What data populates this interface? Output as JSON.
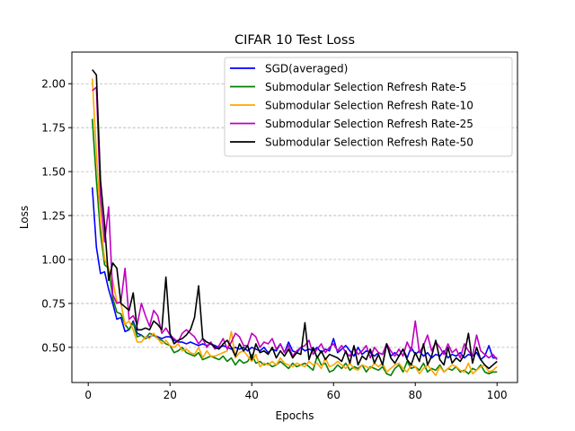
{
  "chart_data": {
    "type": "line",
    "title": "CIFAR 10 Test Loss",
    "xlabel": "Epochs",
    "ylabel": "Loss",
    "xlim": [
      -4,
      105
    ],
    "ylim": [
      0.3,
      2.18
    ],
    "xticks": [
      0,
      20,
      40,
      60,
      80,
      100
    ],
    "yticks": [
      0.5,
      0.75,
      1.0,
      1.25,
      1.5,
      1.75,
      2.0
    ],
    "xtick_labels": [
      "0",
      "20",
      "40",
      "60",
      "80",
      "100"
    ],
    "ytick_labels": [
      "0.50",
      "0.75",
      "1.00",
      "1.25",
      "1.50",
      "1.75",
      "2.00"
    ],
    "grid": "y-dashed",
    "legend_position": "top-right",
    "x_start": 1,
    "x_step": 1,
    "series": [
      {
        "name": "SGD(averaged)",
        "color": "#0000ff",
        "values": [
          1.41,
          1.07,
          0.92,
          0.93,
          0.83,
          0.75,
          0.66,
          0.67,
          0.59,
          0.6,
          0.65,
          0.58,
          0.57,
          0.55,
          0.56,
          0.57,
          0.56,
          0.55,
          0.56,
          0.56,
          0.54,
          0.53,
          0.53,
          0.52,
          0.53,
          0.52,
          0.51,
          0.52,
          0.51,
          0.52,
          0.51,
          0.5,
          0.51,
          0.5,
          0.49,
          0.5,
          0.49,
          0.5,
          0.48,
          0.5,
          0.49,
          0.48,
          0.5,
          0.47,
          0.49,
          0.48,
          0.52,
          0.47,
          0.53,
          0.48,
          0.47,
          0.5,
          0.48,
          0.49,
          0.48,
          0.5,
          0.47,
          0.49,
          0.48,
          0.55,
          0.47,
          0.49,
          0.51,
          0.48,
          0.45,
          0.5,
          0.46,
          0.48,
          0.47,
          0.45,
          0.47,
          0.46,
          0.52,
          0.45,
          0.47,
          0.45,
          0.49,
          0.44,
          0.5,
          0.46,
          0.48,
          0.45,
          0.47,
          0.44,
          0.46,
          0.45,
          0.48,
          0.44,
          0.46,
          0.45,
          0.47,
          0.44,
          0.46,
          0.45,
          0.47,
          0.43,
          0.45,
          0.51,
          0.44,
          0.44
        ]
      },
      {
        "name": "Submodular Selection Refresh Rate-5",
        "color": "#008000",
        "values": [
          1.8,
          1.45,
          1.15,
          0.97,
          0.95,
          0.78,
          0.7,
          0.69,
          0.63,
          0.6,
          0.64,
          0.56,
          0.57,
          0.55,
          0.58,
          0.57,
          0.55,
          0.54,
          0.52,
          0.51,
          0.47,
          0.48,
          0.5,
          0.47,
          0.46,
          0.45,
          0.47,
          0.43,
          0.44,
          0.45,
          0.44,
          0.43,
          0.45,
          0.42,
          0.44,
          0.4,
          0.43,
          0.41,
          0.42,
          0.46,
          0.41,
          0.42,
          0.4,
          0.41,
          0.39,
          0.4,
          0.42,
          0.4,
          0.38,
          0.41,
          0.39,
          0.4,
          0.41,
          0.39,
          0.37,
          0.45,
          0.4,
          0.41,
          0.36,
          0.37,
          0.4,
          0.38,
          0.41,
          0.37,
          0.39,
          0.38,
          0.4,
          0.36,
          0.39,
          0.38,
          0.37,
          0.39,
          0.35,
          0.34,
          0.38,
          0.4,
          0.36,
          0.42,
          0.38,
          0.39,
          0.37,
          0.41,
          0.36,
          0.38,
          0.37,
          0.4,
          0.36,
          0.38,
          0.37,
          0.39,
          0.36,
          0.37,
          0.35,
          0.38,
          0.37,
          0.4,
          0.36,
          0.35,
          0.36,
          0.36
        ]
      },
      {
        "name": "Submodular Selection Refresh Rate-10",
        "color": "#ffa500",
        "values": [
          2.03,
          1.6,
          1.22,
          1.0,
          0.95,
          0.88,
          0.76,
          0.75,
          0.63,
          0.65,
          0.6,
          0.53,
          0.53,
          0.56,
          0.55,
          0.58,
          0.55,
          0.52,
          0.54,
          0.51,
          0.5,
          0.52,
          0.48,
          0.49,
          0.47,
          0.46,
          0.5,
          0.44,
          0.48,
          0.45,
          0.45,
          0.46,
          0.47,
          0.48,
          0.59,
          0.44,
          0.47,
          0.48,
          0.45,
          0.42,
          0.46,
          0.39,
          0.41,
          0.4,
          0.42,
          0.4,
          0.44,
          0.41,
          0.4,
          0.39,
          0.41,
          0.4,
          0.39,
          0.42,
          0.4,
          0.41,
          0.38,
          0.44,
          0.39,
          0.4,
          0.42,
          0.4,
          0.38,
          0.41,
          0.38,
          0.37,
          0.4,
          0.39,
          0.38,
          0.41,
          0.39,
          0.41,
          0.36,
          0.38,
          0.4,
          0.41,
          0.38,
          0.36,
          0.4,
          0.39,
          0.35,
          0.38,
          0.4,
          0.37,
          0.34,
          0.39,
          0.36,
          0.38,
          0.4,
          0.39,
          0.37,
          0.36,
          0.41,
          0.35,
          0.37,
          0.39,
          0.4,
          0.36,
          0.37,
          0.39
        ]
      },
      {
        "name": "Submodular Selection Refresh Rate-25",
        "color": "#bf00bf",
        "values": [
          1.96,
          1.98,
          1.35,
          1.1,
          1.3,
          0.8,
          0.75,
          0.76,
          0.95,
          0.66,
          0.68,
          0.63,
          0.75,
          0.68,
          0.62,
          0.71,
          0.68,
          0.58,
          0.61,
          0.57,
          0.55,
          0.53,
          0.58,
          0.6,
          0.58,
          0.56,
          0.52,
          0.55,
          0.5,
          0.53,
          0.49,
          0.51,
          0.55,
          0.49,
          0.53,
          0.58,
          0.56,
          0.51,
          0.51,
          0.58,
          0.56,
          0.5,
          0.53,
          0.52,
          0.55,
          0.49,
          0.52,
          0.47,
          0.51,
          0.45,
          0.48,
          0.5,
          0.51,
          0.54,
          0.46,
          0.49,
          0.52,
          0.47,
          0.5,
          0.52,
          0.48,
          0.51,
          0.47,
          0.45,
          0.5,
          0.46,
          0.48,
          0.51,
          0.44,
          0.5,
          0.47,
          0.46,
          0.52,
          0.48,
          0.45,
          0.49,
          0.45,
          0.53,
          0.48,
          0.65,
          0.47,
          0.51,
          0.57,
          0.48,
          0.53,
          0.5,
          0.46,
          0.52,
          0.47,
          0.49,
          0.44,
          0.52,
          0.48,
          0.45,
          0.57,
          0.48,
          0.46,
          0.44,
          0.46,
          0.43
        ]
      },
      {
        "name": "Submodular Selection Refresh Rate-50",
        "color": "#000000",
        "values": [
          2.08,
          2.05,
          1.45,
          1.2,
          0.88,
          0.98,
          0.95,
          0.75,
          0.73,
          0.71,
          0.81,
          0.6,
          0.6,
          0.61,
          0.6,
          0.65,
          0.63,
          0.6,
          0.9,
          0.58,
          0.52,
          0.54,
          0.55,
          0.57,
          0.6,
          0.67,
          0.85,
          0.55,
          0.53,
          0.52,
          0.5,
          0.49,
          0.52,
          0.54,
          0.5,
          0.45,
          0.52,
          0.48,
          0.51,
          0.43,
          0.52,
          0.47,
          0.48,
          0.46,
          0.5,
          0.44,
          0.48,
          0.45,
          0.49,
          0.44,
          0.47,
          0.46,
          0.64,
          0.43,
          0.5,
          0.44,
          0.48,
          0.43,
          0.46,
          0.45,
          0.44,
          0.42,
          0.48,
          0.41,
          0.51,
          0.4,
          0.45,
          0.43,
          0.49,
          0.41,
          0.46,
          0.4,
          0.52,
          0.44,
          0.41,
          0.45,
          0.49,
          0.43,
          0.4,
          0.47,
          0.42,
          0.52,
          0.4,
          0.45,
          0.54,
          0.43,
          0.4,
          0.5,
          0.41,
          0.44,
          0.42,
          0.46,
          0.58,
          0.41,
          0.5,
          0.43,
          0.4,
          0.38,
          0.4,
          0.42
        ]
      }
    ]
  }
}
